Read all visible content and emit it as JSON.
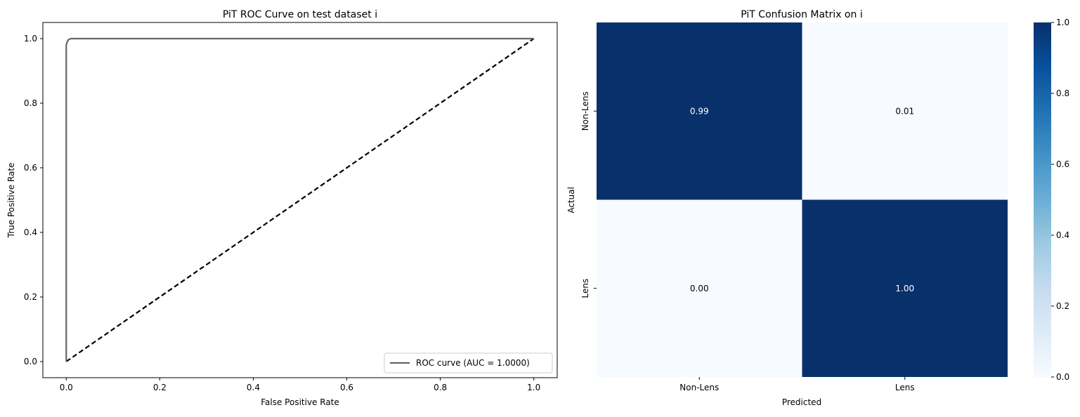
{
  "chart_data": [
    {
      "type": "line",
      "title": "PiT ROC Curve on test dataset i",
      "xlabel": "False Positive Rate",
      "ylabel": "True Positive Rate",
      "xlim": [
        -0.05,
        1.05
      ],
      "ylim": [
        -0.05,
        1.05
      ],
      "xticks": [
        "0.0",
        "0.2",
        "0.4",
        "0.6",
        "0.8",
        "1.0"
      ],
      "yticks": [
        "0.0",
        "0.2",
        "0.4",
        "0.6",
        "0.8",
        "1.0"
      ],
      "legend_position": "lower right",
      "series": [
        {
          "name": "ROC curve (AUC = 1.0000)",
          "color": "#666666",
          "style": "solid",
          "x": [
            0,
            0,
            0.002,
            0.005,
            0.01,
            1.0
          ],
          "y": [
            0,
            0.98,
            0.99,
            0.997,
            1.0,
            1.0
          ]
        },
        {
          "color": "#000000",
          "style": "dashed",
          "x": [
            0,
            1
          ],
          "y": [
            0,
            1
          ]
        }
      ]
    },
    {
      "type": "heatmap",
      "title": "PiT Confusion Matrix on i",
      "xlabel": "Predicted",
      "ylabel": "Actual",
      "x_categories": [
        "Non-Lens",
        "Lens"
      ],
      "y_categories": [
        "Non-Lens",
        "Lens"
      ],
      "values": [
        [
          0.99,
          0.01
        ],
        [
          0.0,
          1.0
        ]
      ],
      "annotations": [
        [
          "0.99",
          "0.01"
        ],
        [
          "0.00",
          "1.00"
        ]
      ],
      "colormap": "Blues",
      "colorbar": {
        "range": [
          0,
          1
        ],
        "ticks": [
          "0.0",
          "0.2",
          "0.4",
          "0.6",
          "0.8",
          "1.0"
        ]
      }
    }
  ]
}
